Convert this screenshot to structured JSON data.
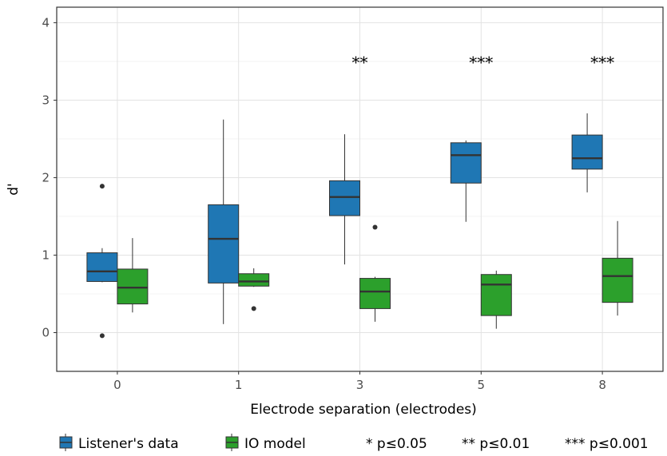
{
  "chart_data": {
    "type": "boxplot",
    "xlabel": "Electrode separation (electrodes)",
    "ylabel": "d'",
    "categories": [
      "0",
      "1",
      "3",
      "5",
      "8"
    ],
    "ylim": [
      -0.5,
      4.2
    ],
    "yticks": [
      0,
      1,
      2,
      3,
      4
    ],
    "grid": true,
    "legend_position": "bottom",
    "series": [
      {
        "name": "Listener's data",
        "color": "#1f77b4",
        "boxes": [
          {
            "min": 0.65,
            "q1": 0.66,
            "median": 0.79,
            "q3": 1.03,
            "max": 1.09,
            "outliers": [
              1.89,
              -0.04
            ]
          },
          {
            "min": 0.11,
            "q1": 0.64,
            "median": 1.21,
            "q3": 1.65,
            "max": 2.75,
            "outliers": []
          },
          {
            "min": 0.88,
            "q1": 1.51,
            "median": 1.75,
            "q3": 1.96,
            "max": 2.56,
            "outliers": []
          },
          {
            "min": 1.43,
            "q1": 1.93,
            "median": 2.29,
            "q3": 2.45,
            "max": 2.48,
            "outliers": []
          },
          {
            "min": 1.81,
            "q1": 2.11,
            "median": 2.25,
            "q3": 2.55,
            "max": 2.83,
            "outliers": []
          }
        ]
      },
      {
        "name": "IO model",
        "color": "#2ca02c",
        "boxes": [
          {
            "min": 0.26,
            "q1": 0.37,
            "median": 0.58,
            "q3": 0.82,
            "max": 1.22,
            "outliers": []
          },
          {
            "min": 0.59,
            "q1": 0.6,
            "median": 0.66,
            "q3": 0.76,
            "max": 0.83,
            "outliers": [
              0.31
            ]
          },
          {
            "min": 0.14,
            "q1": 0.31,
            "median": 0.53,
            "q3": 0.7,
            "max": 0.72,
            "outliers": [
              1.36
            ]
          },
          {
            "min": 0.05,
            "q1": 0.22,
            "median": 0.62,
            "q3": 0.75,
            "max": 0.8,
            "outliers": []
          },
          {
            "min": 0.22,
            "q1": 0.39,
            "median": 0.73,
            "q3": 0.96,
            "max": 1.44,
            "outliers": []
          }
        ]
      }
    ],
    "significance": [
      {
        "category": "3",
        "label": "**",
        "y": 3.5
      },
      {
        "category": "5",
        "label": "***",
        "y": 3.5
      },
      {
        "category": "8",
        "label": "***",
        "y": 3.5
      }
    ],
    "significance_legend": [
      "* p≤0.05",
      "** p≤0.01",
      "*** p≤0.001"
    ]
  }
}
